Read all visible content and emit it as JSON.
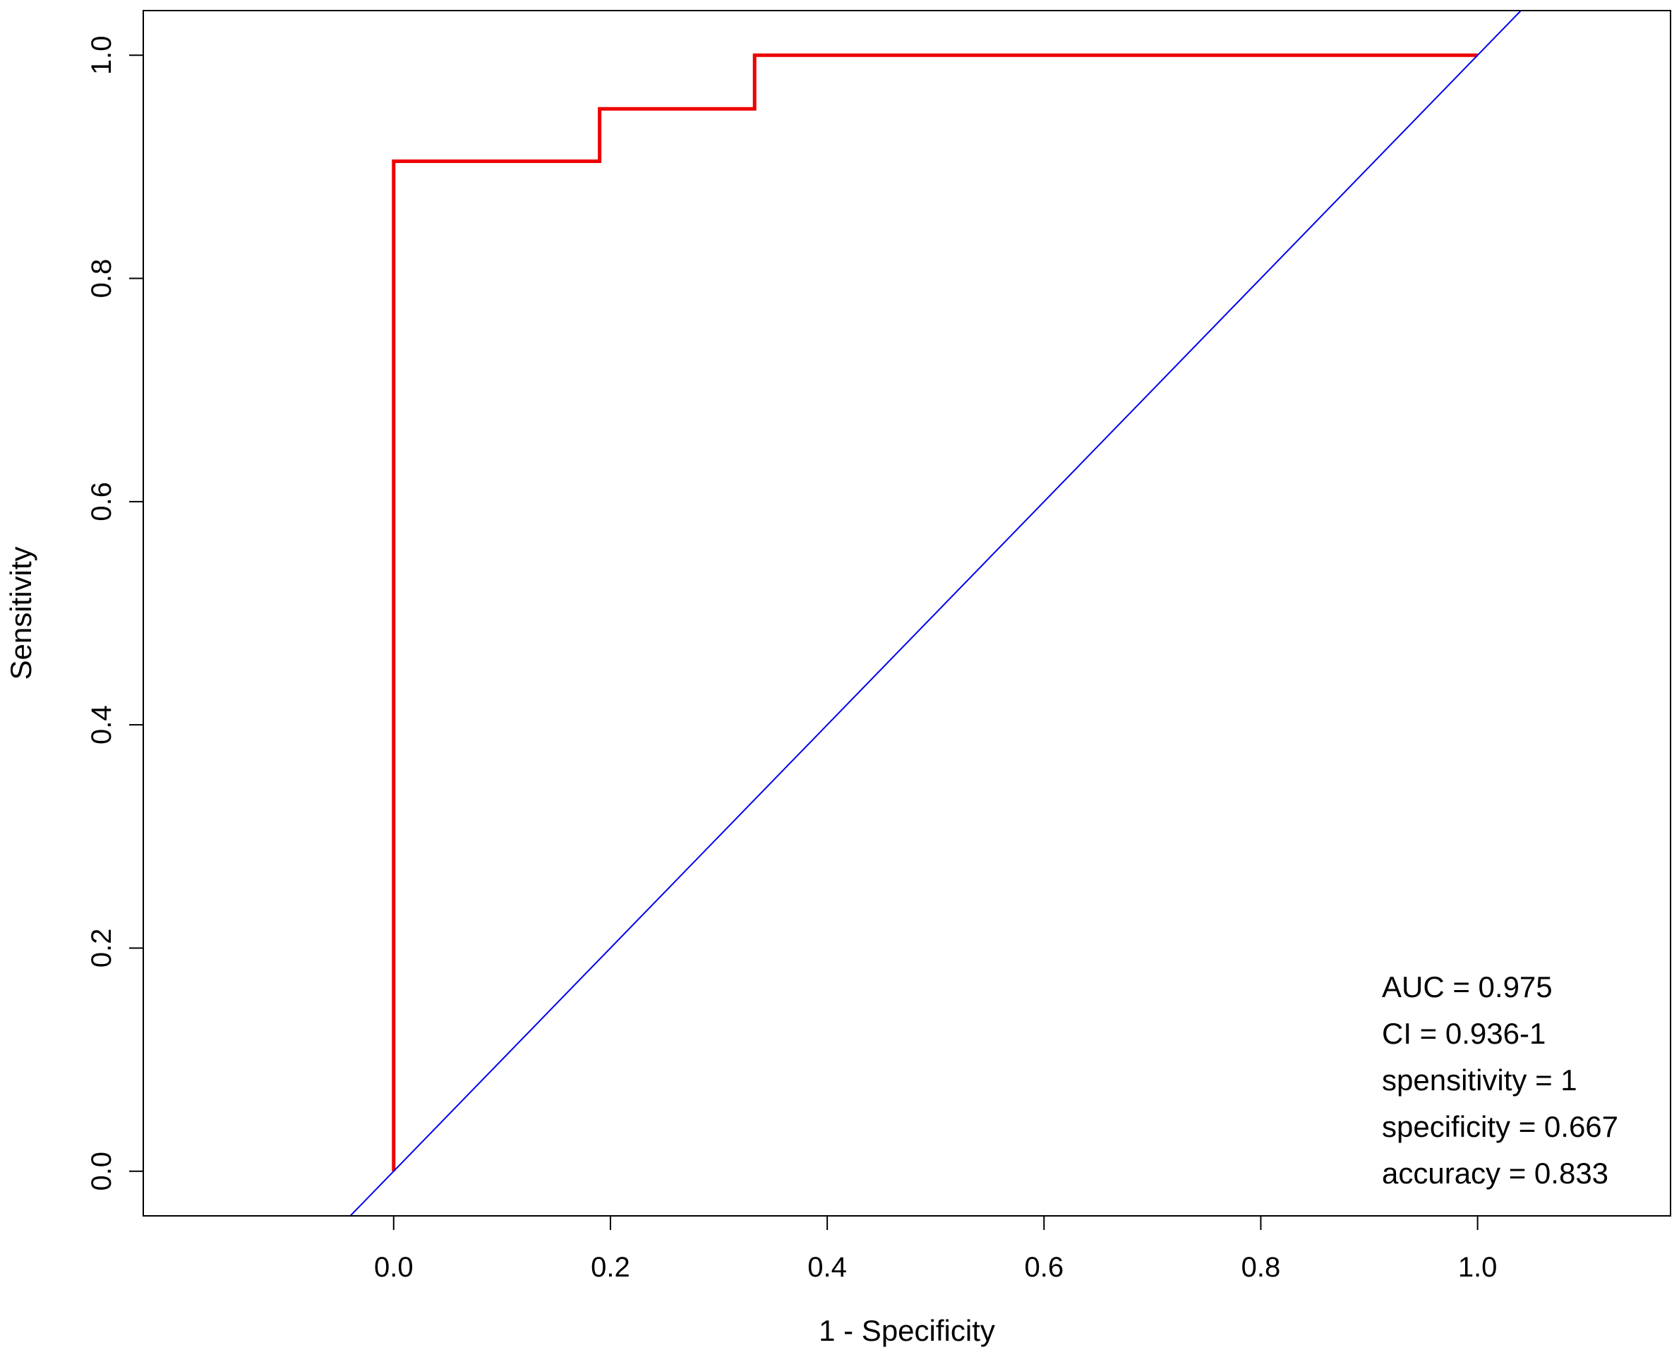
{
  "chart_data": {
    "type": "line",
    "xlabel": "1 - Specificity",
    "ylabel": "Sensitivity",
    "xlim": [
      -0.231,
      1.178
    ],
    "ylim": [
      -0.04,
      1.04
    ],
    "grid": false,
    "x_ticks": [
      "0.0",
      "0.2",
      "0.4",
      "0.6",
      "0.8",
      "1.0"
    ],
    "y_ticks": [
      "0.0",
      "0.2",
      "0.4",
      "0.6",
      "0.8",
      "1.0"
    ],
    "series": [
      {
        "color": "#ee0000",
        "style": "step",
        "points": [
          [
            0.0,
            0.0
          ],
          [
            0.0,
            0.905
          ],
          [
            0.19,
            0.905
          ],
          [
            0.19,
            0.952
          ],
          [
            0.333,
            0.952
          ],
          [
            0.333,
            1.0
          ],
          [
            1.0,
            1.0
          ]
        ]
      },
      {
        "color": "#0000ee",
        "style": "diagonal",
        "points": [
          [
            0.0,
            0.0
          ],
          [
            1.0,
            1.0
          ]
        ]
      }
    ],
    "annotations": [
      "AUC = 0.975",
      "CI = 0.936-1",
      "spensitivity = 1",
      "specificity = 0.667",
      "accuracy = 0.833"
    ]
  }
}
